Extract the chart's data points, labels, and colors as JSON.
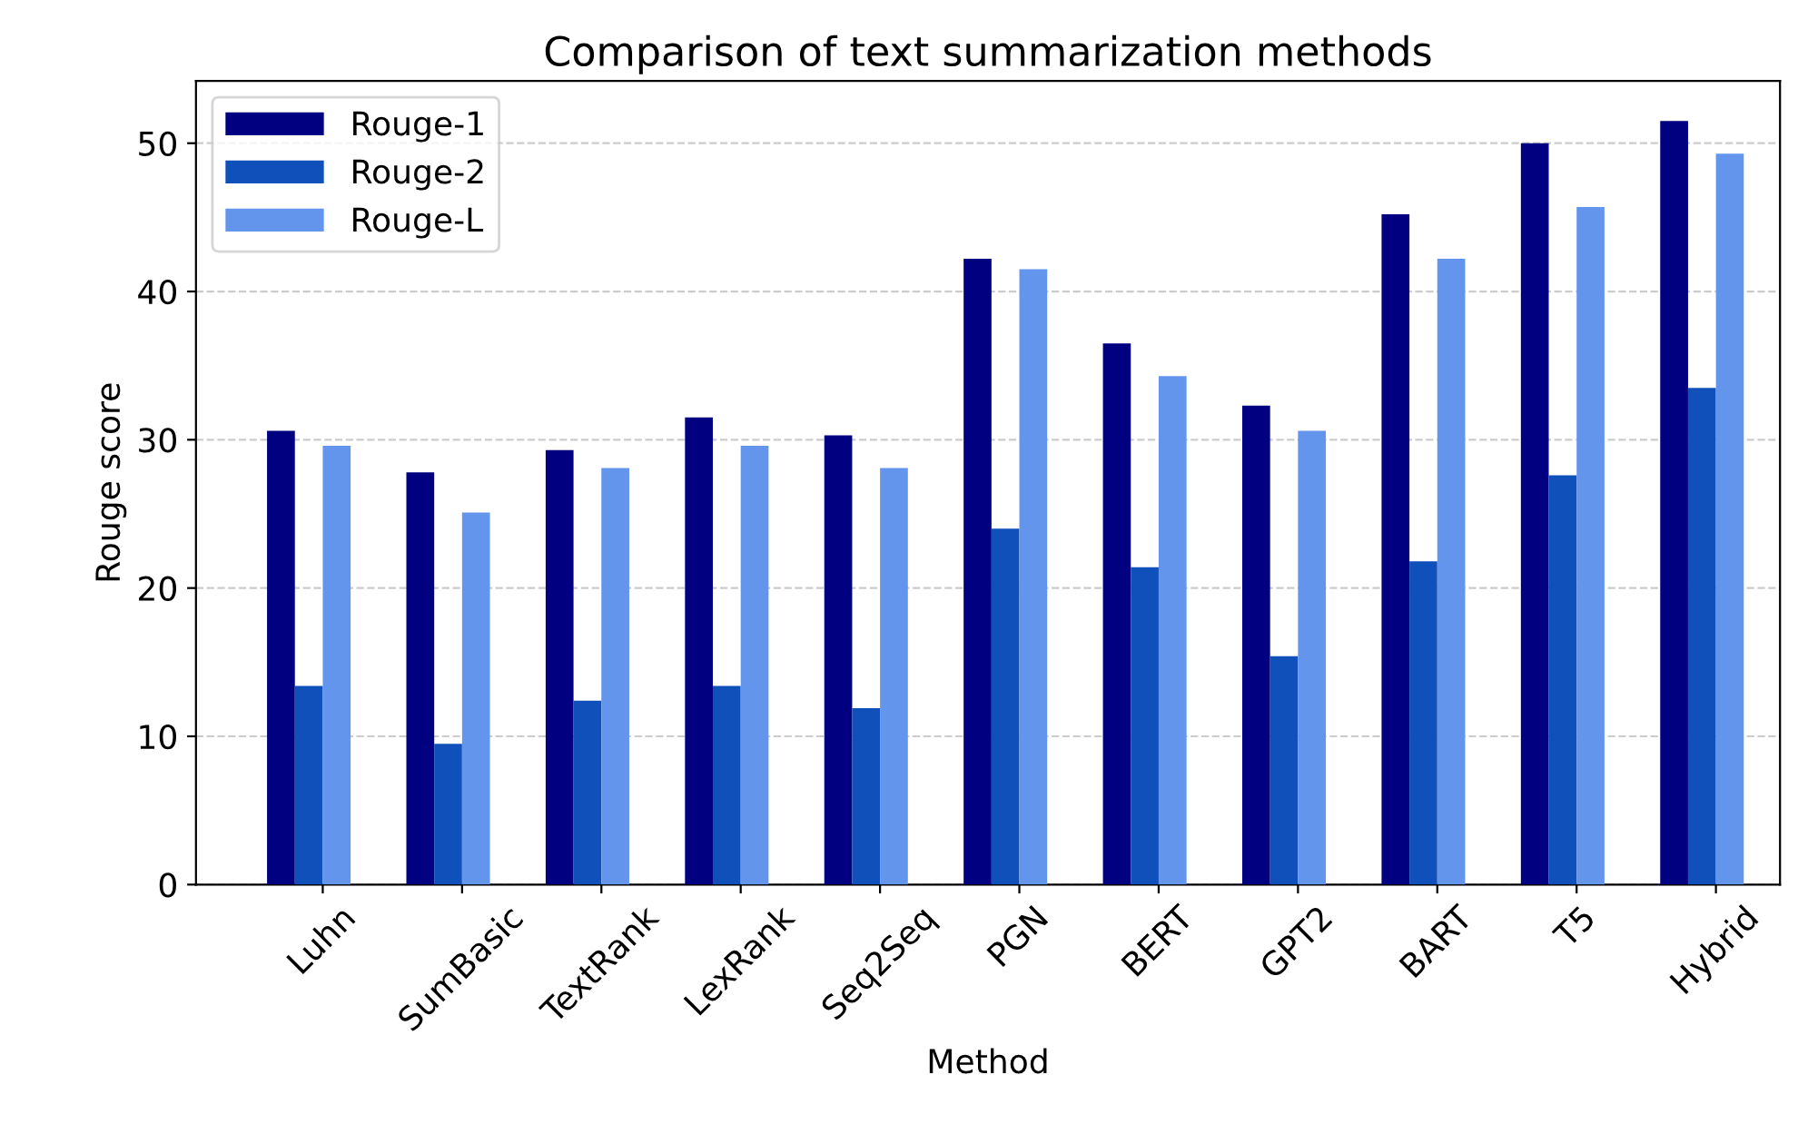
{
  "chart_data": {
    "type": "bar",
    "title": "Comparison of text summarization methods",
    "xlabel": "Method",
    "ylabel": "Rouge score",
    "categories": [
      "Luhn",
      "SumBasic",
      "TextRank",
      "LexRank",
      "Seq2Seq",
      "PGN",
      "BERT",
      "GPT2",
      "BART",
      "T5",
      "Hybrid"
    ],
    "series": [
      {
        "name": "Rouge-1",
        "color": "#000080",
        "values": [
          30.6,
          27.8,
          29.3,
          31.5,
          30.3,
          42.2,
          36.5,
          32.3,
          45.2,
          50.0,
          51.5
        ]
      },
      {
        "name": "Rouge-2",
        "color": "#1050bb",
        "values": [
          13.4,
          9.5,
          12.4,
          13.4,
          11.9,
          24.0,
          21.4,
          15.4,
          21.8,
          27.6,
          33.5
        ]
      },
      {
        "name": "Rouge-L",
        "color": "#6495ed",
        "values": [
          29.6,
          25.1,
          28.1,
          29.6,
          28.1,
          41.5,
          34.3,
          30.6,
          42.2,
          45.7,
          49.3
        ]
      }
    ],
    "ylim": [
      0,
      54.2
    ],
    "yticks": [
      0,
      10,
      20,
      30,
      40,
      50
    ],
    "grid": "y",
    "legend": "top left"
  }
}
